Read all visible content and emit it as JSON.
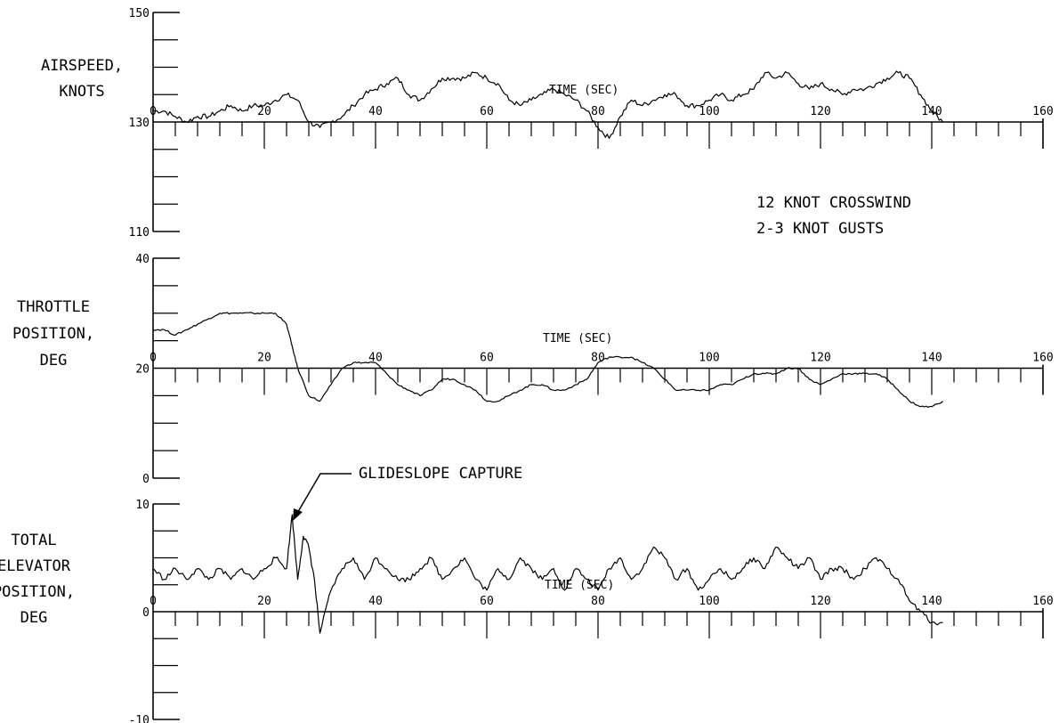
{
  "chart_data": [
    {
      "type": "line",
      "ylabel_lines": [
        "AIRSPEED,",
        "KNOTS"
      ],
      "xlabel": "TIME (SEC)",
      "xlim": [
        0,
        160
      ],
      "ylim": [
        110,
        150
      ],
      "y_ticks": [
        150,
        130,
        110
      ],
      "x_ticks": [
        20,
        40,
        60,
        80,
        100,
        120,
        140,
        160
      ],
      "x_origin_label": "0",
      "x": [
        0,
        2,
        4,
        6,
        8,
        10,
        12,
        14,
        16,
        18,
        20,
        22,
        24,
        26,
        28,
        30,
        32,
        34,
        36,
        38,
        40,
        42,
        44,
        46,
        48,
        50,
        52,
        54,
        56,
        58,
        60,
        62,
        64,
        66,
        68,
        70,
        72,
        74,
        76,
        78,
        80,
        82,
        84,
        86,
        88,
        90,
        92,
        94,
        96,
        98,
        100,
        102,
        104,
        106,
        108,
        110,
        112,
        114,
        116,
        118,
        120,
        122,
        124,
        126,
        128,
        130,
        132,
        134,
        136,
        138,
        140,
        142
      ],
      "values": [
        132,
        132,
        131,
        130,
        131,
        131,
        132,
        133,
        132,
        133,
        133,
        134,
        135,
        134,
        130,
        129,
        130,
        131,
        133,
        135,
        136,
        137,
        138,
        135,
        134,
        136,
        138,
        138,
        138,
        139,
        138,
        137,
        134,
        133,
        134,
        135,
        136,
        135,
        134,
        132,
        129,
        127,
        131,
        134,
        133,
        134,
        135,
        135,
        133,
        133,
        134,
        135,
        134,
        135,
        136,
        139,
        138,
        139,
        137,
        136,
        137,
        136,
        135,
        136,
        136,
        137,
        138,
        139,
        138,
        135,
        132,
        130
      ]
    },
    {
      "type": "line",
      "ylabel_lines": [
        "THROTTLE",
        "POSITION,",
        "DEG"
      ],
      "xlabel": "TIME (SEC)",
      "xlim": [
        0,
        160
      ],
      "ylim": [
        0,
        40
      ],
      "y_ticks": [
        40,
        20,
        0
      ],
      "x_ticks": [
        20,
        40,
        60,
        80,
        100,
        120,
        140,
        160
      ],
      "x_origin_label": "0",
      "x": [
        0,
        2,
        4,
        6,
        8,
        10,
        12,
        14,
        16,
        18,
        20,
        22,
        24,
        25,
        26,
        28,
        30,
        32,
        34,
        36,
        38,
        40,
        42,
        44,
        46,
        48,
        50,
        52,
        54,
        56,
        58,
        60,
        62,
        64,
        66,
        68,
        70,
        72,
        74,
        76,
        78,
        80,
        82,
        84,
        86,
        88,
        90,
        92,
        94,
        96,
        98,
        100,
        102,
        104,
        106,
        108,
        110,
        112,
        114,
        116,
        118,
        120,
        122,
        124,
        126,
        128,
        130,
        132,
        134,
        136,
        138,
        140,
        142
      ],
      "values": [
        27,
        27,
        26,
        27,
        28,
        29,
        30,
        30,
        30,
        30,
        30,
        30,
        28,
        24,
        20,
        15,
        14,
        17,
        20,
        21,
        21,
        21,
        19,
        17,
        16,
        15,
        16,
        18,
        18,
        17,
        16,
        14,
        14,
        15,
        16,
        17,
        17,
        16,
        16,
        17,
        18,
        21,
        22,
        22,
        22,
        21,
        20,
        18,
        16,
        16,
        16,
        16,
        17,
        17,
        18,
        19,
        19,
        19,
        20,
        20,
        18,
        17,
        18,
        19,
        19,
        19,
        19,
        18,
        16,
        14,
        13,
        13,
        14
      ]
    },
    {
      "type": "line",
      "ylabel_lines": [
        "TOTAL",
        "ELEVATOR",
        "POSITION,",
        "DEG"
      ],
      "xlabel": "TIME (SEC)",
      "xlim": [
        0,
        160
      ],
      "ylim": [
        -10,
        10
      ],
      "y_ticks": [
        10,
        0,
        -10
      ],
      "x_ticks": [
        20,
        40,
        60,
        80,
        100,
        120,
        140,
        160
      ],
      "x_origin_label": "0",
      "annotation": "GLIDESLOPE CAPTURE",
      "annotation_x": 25,
      "x": [
        0,
        2,
        4,
        6,
        8,
        10,
        12,
        14,
        16,
        18,
        20,
        22,
        24,
        25,
        26,
        27,
        28,
        29,
        30,
        32,
        34,
        36,
        38,
        40,
        42,
        44,
        46,
        48,
        50,
        52,
        54,
        56,
        58,
        60,
        62,
        64,
        66,
        68,
        70,
        72,
        74,
        76,
        78,
        80,
        82,
        84,
        86,
        88,
        90,
        92,
        94,
        96,
        98,
        100,
        102,
        104,
        106,
        108,
        110,
        112,
        114,
        116,
        118,
        120,
        122,
        124,
        126,
        128,
        130,
        132,
        134,
        136,
        138,
        140,
        142
      ],
      "values": [
        4,
        3,
        4,
        3,
        4,
        3,
        4,
        3,
        4,
        3,
        4,
        5,
        4,
        9,
        3,
        7,
        6,
        3,
        -2,
        2,
        4,
        5,
        3,
        5,
        4,
        3,
        3,
        4,
        5,
        3,
        4,
        5,
        3,
        2,
        4,
        3,
        5,
        4,
        3,
        4,
        2,
        4,
        3,
        2,
        4,
        5,
        3,
        4,
        6,
        5,
        3,
        4,
        2,
        3,
        4,
        3,
        4,
        5,
        4,
        6,
        5,
        4,
        5,
        3,
        4,
        4,
        3,
        4,
        5,
        4,
        3,
        1,
        0,
        -1,
        -1
      ]
    }
  ],
  "notes": [
    "12 KNOT CROSSWIND",
    "2-3 KNOT GUSTS"
  ]
}
